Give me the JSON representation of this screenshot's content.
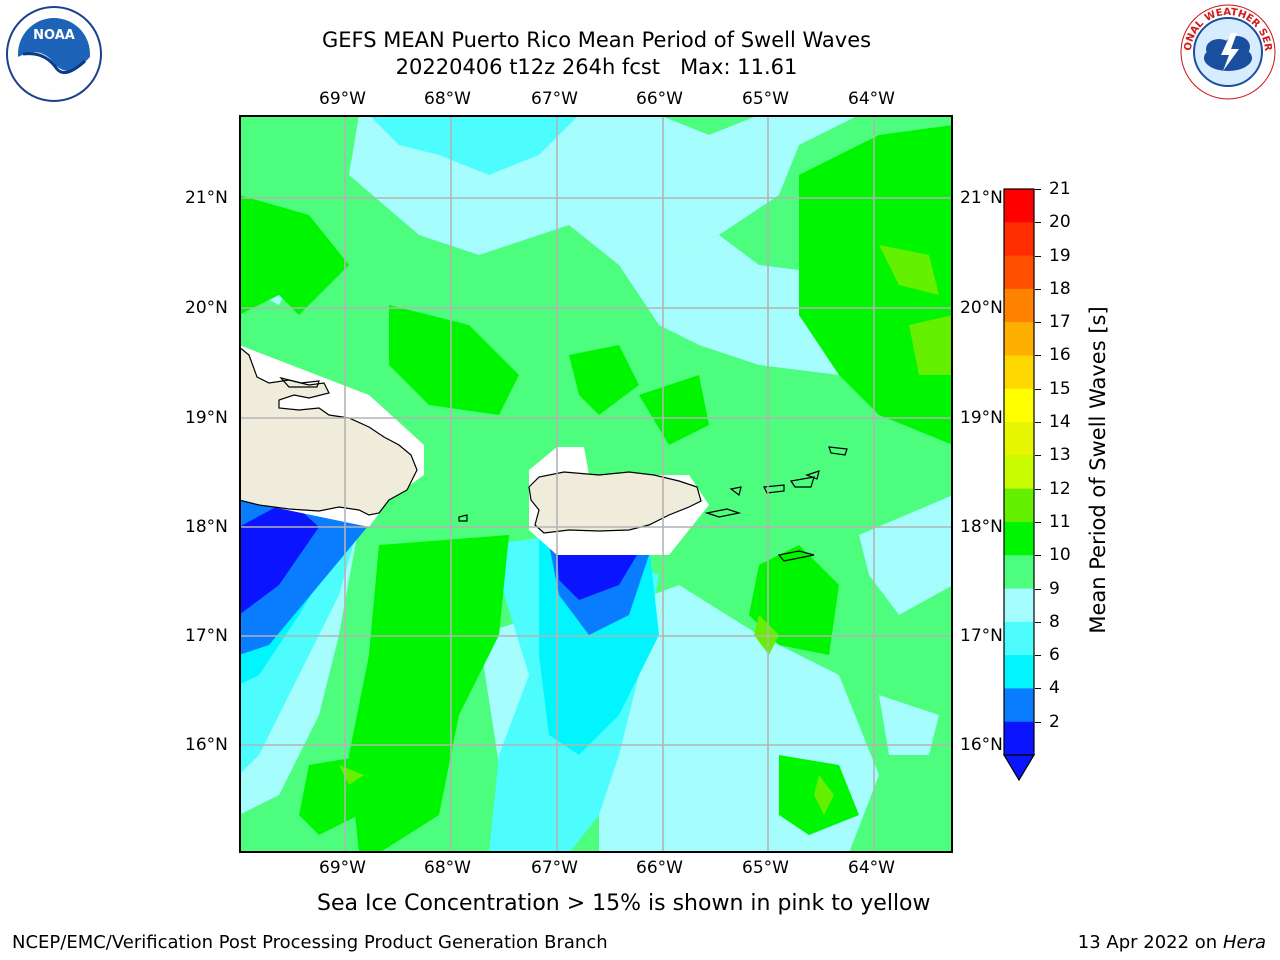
{
  "title": {
    "line1": "GEFS MEAN Puerto Rico Mean Period of Swell Waves",
    "line2": "20220406 t12z 264h fcst   Max: 11.61"
  },
  "axes": {
    "lon_ticks": [
      "69°W",
      "68°W",
      "67°W",
      "66°W",
      "65°W",
      "64°W"
    ],
    "lat_ticks": [
      "21°N",
      "20°N",
      "19°N",
      "18°N",
      "17°N",
      "16°N"
    ]
  },
  "colorbar": {
    "label": "Mean Period of Swell Waves [s]",
    "ticks": [
      "21",
      "20",
      "19",
      "18",
      "17",
      "16",
      "15",
      "14",
      "13",
      "12",
      "11",
      "10",
      "9",
      "8",
      "6",
      "4",
      "2"
    ],
    "bins": [
      {
        "from": 2,
        "to": 4,
        "color": "#0a14ff"
      },
      {
        "from": 4,
        "to": 6,
        "color": "#0a7dff"
      },
      {
        "from": 6,
        "to": 8,
        "color": "#00f5ff"
      },
      {
        "from": 8,
        "to": 9,
        "color": "#4dfdfd"
      },
      {
        "from": 9,
        "to": 10,
        "color": "#a6fdfd"
      },
      {
        "from": 10,
        "to": 11,
        "color": "#4dfd7d"
      },
      {
        "from": 11,
        "to": 12,
        "color": "#00f500"
      },
      {
        "from": 12,
        "to": 13,
        "color": "#64f000"
      },
      {
        "from": 13,
        "to": 14,
        "color": "#c8fa00"
      },
      {
        "from": 14,
        "to": 15,
        "color": "#e6f500"
      },
      {
        "from": 15,
        "to": 16,
        "color": "#ffff00"
      },
      {
        "from": 16,
        "to": 17,
        "color": "#ffd700"
      },
      {
        "from": 17,
        "to": 18,
        "color": "#ffaf00"
      },
      {
        "from": 18,
        "to": 19,
        "color": "#ff8200"
      },
      {
        "from": 19,
        "to": 20,
        "color": "#ff5000"
      },
      {
        "from": 20,
        "to": 21,
        "color": "#ff2d00"
      },
      {
        "from": 21,
        "to": 22,
        "color": "#ff0000"
      }
    ],
    "under_color": "#0a14ff"
  },
  "note": "Sea Ice Concentration > 15% is shown in pink to yellow",
  "footer": {
    "left": "NCEP/EMC/Verification Post Processing Product Generation Branch",
    "right_prefix": "13 Apr 2022 on ",
    "right_machine": "Hera"
  },
  "logos": {
    "noaa_text": "NOAA",
    "nws_text": "NATIONAL WEATHER SERVICE"
  },
  "colors": {
    "land": "#efecdc",
    "grid": "#b4b4b4",
    "base_field": "#4dfd7d"
  }
}
